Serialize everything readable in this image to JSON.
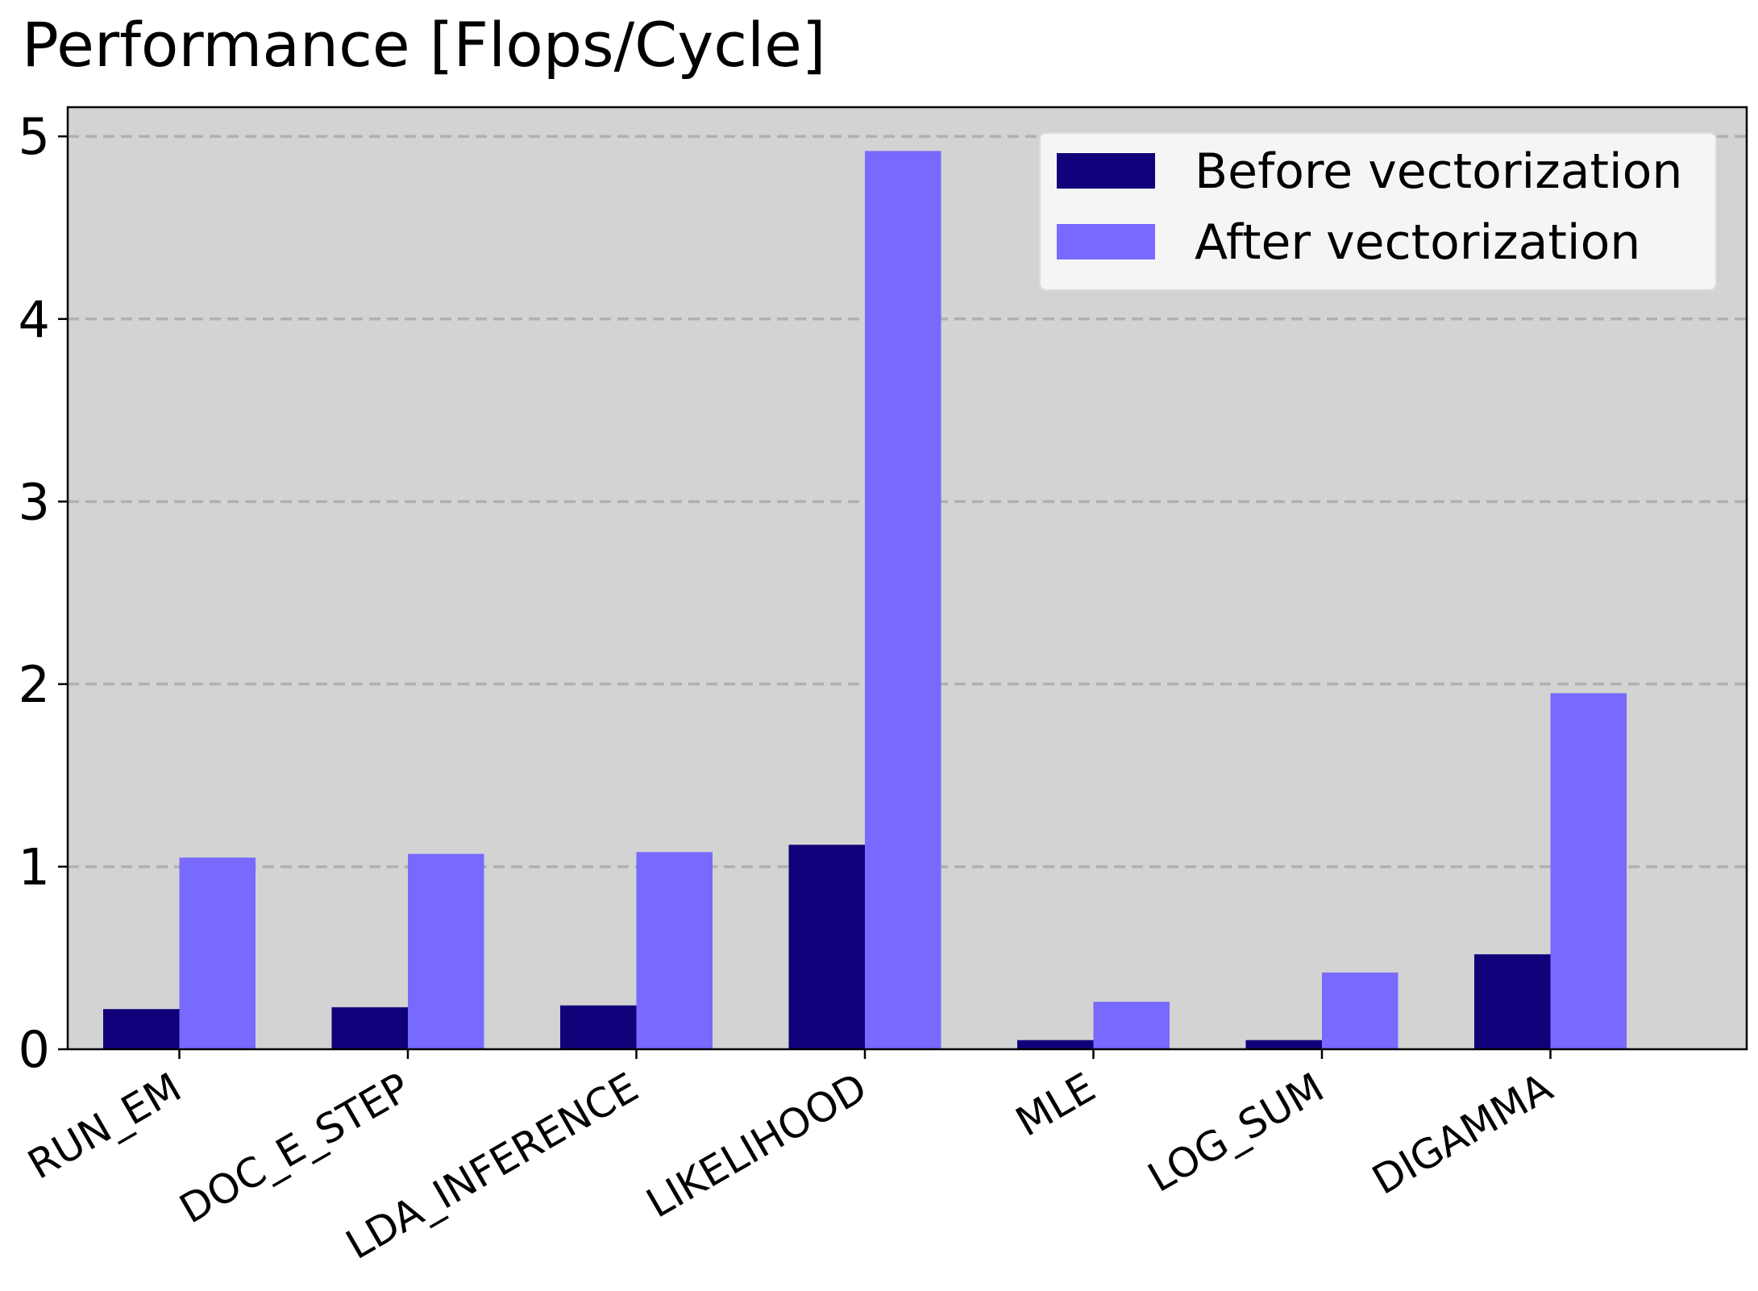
{
  "chart_data": {
    "type": "bar",
    "title": "Performance [Flops/Cycle]",
    "xlabel": "",
    "ylabel": "",
    "categories": [
      "RUN_EM",
      "DOC_E_STEP",
      "LDA_INFERENCE",
      "LIKELIHOOD",
      "MLE",
      "LOG_SUM",
      "DIGAMMA"
    ],
    "series": [
      {
        "name": "Before vectorization",
        "color": "#10007a",
        "values": [
          0.22,
          0.23,
          0.24,
          1.12,
          0.05,
          0.05,
          0.52
        ]
      },
      {
        "name": "After vectorization",
        "color": "#7869ff",
        "values": [
          1.05,
          1.07,
          1.08,
          4.92,
          0.26,
          0.42,
          1.95
        ]
      }
    ],
    "ylim": [
      0,
      5.16
    ],
    "yticks": [
      0,
      1,
      2,
      3,
      4,
      5
    ],
    "grid": "horizontal dashed",
    "legend_position": "top-right",
    "plot_background": "#d3d3d3",
    "grid_color": "#b0b0b0",
    "x_tick_rotation": -30
  }
}
